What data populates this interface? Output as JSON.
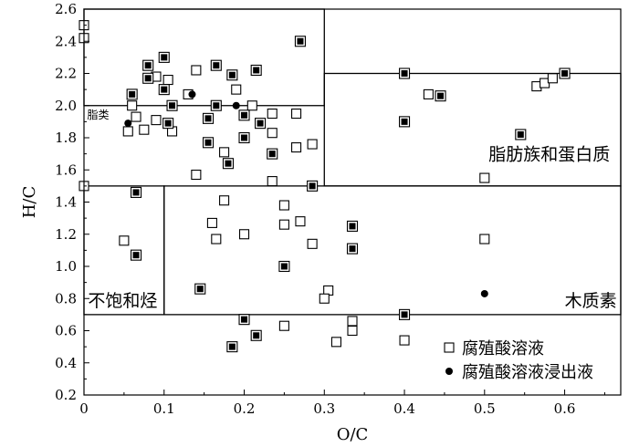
{
  "chart_data": {
    "type": "scatter",
    "xlabel": "O/C",
    "ylabel": "H/C",
    "xlim": [
      0,
      0.67
    ],
    "ylim": [
      0.2,
      2.6
    ],
    "xticks": [
      "0",
      "0.1",
      "0.2",
      "0.3",
      "0.4",
      "0.5",
      "0.6"
    ],
    "yticks": [
      "0.2",
      "0.4",
      "0.6",
      "0.8",
      "1.0",
      "1.2",
      "1.4",
      "1.6",
      "1.8",
      "2.0",
      "2.2",
      "2.4",
      "2.6"
    ],
    "grid": false,
    "legend_position": "bottom-right",
    "regions": [
      {
        "label": "脂类",
        "x": [
          0,
          0.3
        ],
        "y": [
          2.0,
          2.6
        ]
      },
      {
        "label": "脂肪族和蛋白质",
        "x": [
          0.3,
          0.67
        ],
        "y": [
          1.5,
          2.2
        ]
      },
      {
        "label": "不饱和烃",
        "x": [
          0,
          0.1
        ],
        "y": [
          0.7,
          1.5
        ]
      },
      {
        "label": "木质素",
        "x": [
          0.1,
          0.67
        ],
        "y": [
          0.7,
          1.5
        ]
      }
    ],
    "series": [
      {
        "name": "腐殖酸溶液",
        "marker": "open-square",
        "points": [
          [
            0,
            2.5
          ],
          [
            0,
            2.42
          ],
          [
            0,
            1.5
          ],
          [
            0.06,
            2.0
          ],
          [
            0.055,
            1.84
          ],
          [
            0.065,
            1.93
          ],
          [
            0.09,
            2.18
          ],
          [
            0.09,
            1.91
          ],
          [
            0.105,
            2.16
          ],
          [
            0.11,
            1.84
          ],
          [
            0.075,
            1.85
          ],
          [
            0.13,
            2.07
          ],
          [
            0.14,
            2.22
          ],
          [
            0.14,
            1.57
          ],
          [
            0.175,
            1.71
          ],
          [
            0.19,
            2.1
          ],
          [
            0.21,
            2.0
          ],
          [
            0.235,
            1.95
          ],
          [
            0.235,
            1.83
          ],
          [
            0.265,
            1.95
          ],
          [
            0.265,
            1.74
          ],
          [
            0.285,
            1.76
          ],
          [
            0.235,
            1.53
          ],
          [
            0.43,
            2.07
          ],
          [
            0.565,
            2.12
          ],
          [
            0.575,
            2.14
          ],
          [
            0.585,
            2.17
          ],
          [
            0.5,
            1.55
          ],
          [
            0.05,
            1.16
          ],
          [
            0.16,
            1.27
          ],
          [
            0.165,
            1.17
          ],
          [
            0.175,
            1.41
          ],
          [
            0.2,
            1.2
          ],
          [
            0.25,
            1.38
          ],
          [
            0.25,
            1.26
          ],
          [
            0.27,
            1.28
          ],
          [
            0.285,
            1.14
          ],
          [
            0.305,
            0.85
          ],
          [
            0.3,
            0.8
          ],
          [
            0.5,
            1.17
          ],
          [
            0.25,
            0.63
          ],
          [
            0.315,
            0.53
          ],
          [
            0.335,
            0.6
          ],
          [
            0.335,
            0.66
          ],
          [
            0.4,
            0.54
          ]
        ]
      },
      {
        "name": "腐殖酸溶液浸出液",
        "marker": "filled-square",
        "points": [
          [
            0.06,
            2.07
          ],
          [
            0.08,
            2.25
          ],
          [
            0.08,
            2.17
          ],
          [
            0.1,
            2.3
          ],
          [
            0.1,
            2.1
          ],
          [
            0.11,
            2.0
          ],
          [
            0.105,
            1.89
          ],
          [
            0.155,
            1.92
          ],
          [
            0.155,
            1.77
          ],
          [
            0.165,
            2.25
          ],
          [
            0.165,
            2.0
          ],
          [
            0.185,
            2.19
          ],
          [
            0.18,
            1.64
          ],
          [
            0.2,
            1.94
          ],
          [
            0.2,
            1.8
          ],
          [
            0.215,
            2.22
          ],
          [
            0.22,
            1.89
          ],
          [
            0.235,
            1.7
          ],
          [
            0.27,
            2.4
          ],
          [
            0.285,
            1.5
          ],
          [
            0.4,
            2.2
          ],
          [
            0.4,
            1.9
          ],
          [
            0.445,
            2.06
          ],
          [
            0.545,
            1.82
          ],
          [
            0.6,
            2.2
          ],
          [
            0.065,
            1.46
          ],
          [
            0.065,
            1.07
          ],
          [
            0.145,
            0.86
          ],
          [
            0.25,
            1.0
          ],
          [
            0.335,
            1.25
          ],
          [
            0.335,
            1.11
          ],
          [
            0.4,
            0.7
          ],
          [
            0.2,
            0.67
          ],
          [
            0.215,
            0.57
          ],
          [
            0.185,
            0.5
          ]
        ]
      },
      {
        "name": "",
        "marker": "filled-circle",
        "points": [
          [
            0.055,
            1.89
          ],
          [
            0.135,
            2.07
          ],
          [
            0.19,
            2.0
          ],
          [
            0.5,
            0.83
          ]
        ]
      }
    ]
  }
}
